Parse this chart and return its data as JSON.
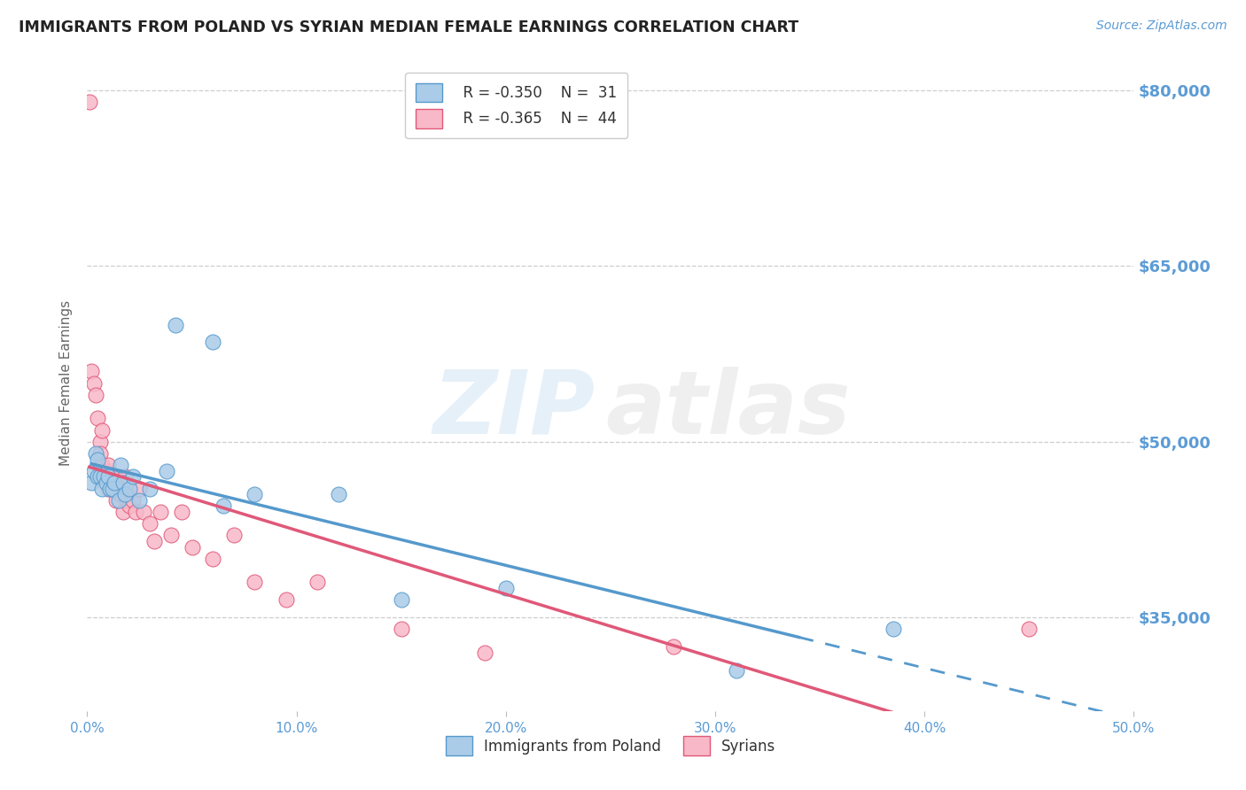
{
  "title": "IMMIGRANTS FROM POLAND VS SYRIAN MEDIAN FEMALE EARNINGS CORRELATION CHART",
  "source": "Source: ZipAtlas.com",
  "ylabel": "Median Female Earnings",
  "watermark_zip": "ZIP",
  "watermark_atlas": "atlas",
  "legend_entries": [
    {
      "label": "Immigrants from Poland",
      "R_text": "R = -0.350",
      "N_text": "N =  31",
      "marker_color": "#aacce8",
      "edge_color": "#5599cc",
      "line_color": "#5599cc"
    },
    {
      "label": "Syrians",
      "R_text": "R = -0.365",
      "N_text": "N =  44",
      "marker_color": "#f8b8c8",
      "edge_color": "#e05878",
      "line_color": "#e05878"
    }
  ],
  "xlim": [
    0.0,
    0.5
  ],
  "ylim": [
    27000,
    83000
  ],
  "yticks": [
    35000,
    50000,
    65000,
    80000
  ],
  "ytick_labels": [
    "$35,000",
    "$50,000",
    "$65,000",
    "$80,000"
  ],
  "xticks": [
    0.0,
    0.1,
    0.2,
    0.3,
    0.4,
    0.5
  ],
  "xtick_labels": [
    "0.0%",
    "10.0%",
    "20.0%",
    "30.0%",
    "40.0%",
    "50.0%"
  ],
  "poland_x": [
    0.002,
    0.003,
    0.004,
    0.005,
    0.005,
    0.006,
    0.007,
    0.008,
    0.009,
    0.01,
    0.011,
    0.012,
    0.013,
    0.015,
    0.016,
    0.017,
    0.018,
    0.02,
    0.022,
    0.025,
    0.03,
    0.038,
    0.042,
    0.06,
    0.065,
    0.08,
    0.12,
    0.15,
    0.2,
    0.31,
    0.385
  ],
  "poland_y": [
    46500,
    47500,
    49000,
    47000,
    48500,
    47000,
    46000,
    47000,
    46500,
    47000,
    46000,
    46000,
    46500,
    45000,
    48000,
    46500,
    45500,
    46000,
    47000,
    45000,
    46000,
    47500,
    60000,
    58500,
    44500,
    45500,
    45500,
    36500,
    37500,
    30500,
    34000
  ],
  "syria_x": [
    0.001,
    0.002,
    0.003,
    0.004,
    0.005,
    0.006,
    0.006,
    0.007,
    0.007,
    0.008,
    0.009,
    0.01,
    0.01,
    0.011,
    0.012,
    0.013,
    0.013,
    0.014,
    0.015,
    0.015,
    0.016,
    0.017,
    0.018,
    0.019,
    0.02,
    0.022,
    0.023,
    0.025,
    0.027,
    0.03,
    0.032,
    0.035,
    0.04,
    0.045,
    0.05,
    0.06,
    0.07,
    0.08,
    0.095,
    0.11,
    0.15,
    0.19,
    0.28,
    0.45
  ],
  "syria_y": [
    79000,
    56000,
    55000,
    54000,
    52000,
    50000,
    49000,
    51000,
    48000,
    47000,
    47500,
    46000,
    48000,
    47000,
    46000,
    47000,
    46000,
    45000,
    47000,
    46000,
    45500,
    44000,
    47000,
    45000,
    44500,
    45000,
    44000,
    46000,
    44000,
    43000,
    41500,
    44000,
    42000,
    44000,
    41000,
    40000,
    42000,
    38000,
    36500,
    38000,
    34000,
    32000,
    32500,
    34000
  ],
  "poland_line_x_start": 0.002,
  "poland_line_x_solid_end": 0.34,
  "poland_line_x_end": 0.5,
  "syria_line_x_start": 0.001,
  "syria_line_x_end": 0.5,
  "title_color": "#222222",
  "axis_tick_color": "#5b9bd5",
  "grid_color": "#c8c8c8",
  "background_color": "#ffffff"
}
